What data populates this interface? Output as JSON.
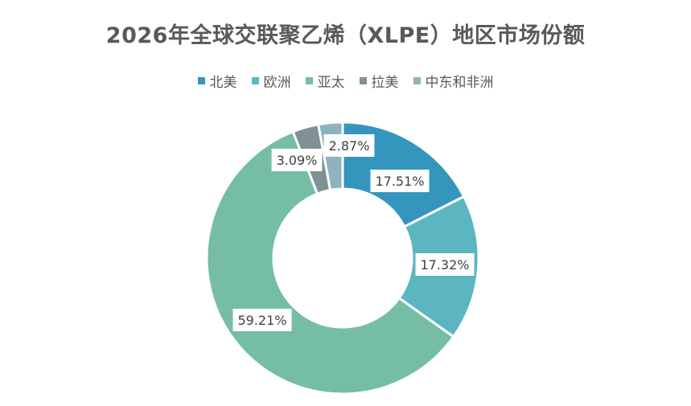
{
  "chart_data": {
    "type": "pie",
    "title": "2026年全球交联聚乙烯（XLPE）地区市场份额",
    "donut": true,
    "legend_position": "top",
    "slices": [
      {
        "name": "北美",
        "value": 17.51,
        "label": "17.51%",
        "color": "#3496BD"
      },
      {
        "name": "欧洲",
        "value": 17.32,
        "label": "17.32%",
        "color": "#5BB6C2"
      },
      {
        "name": "亚太",
        "value": 59.21,
        "label": "59.21%",
        "color": "#76BDA6"
      },
      {
        "name": "拉美",
        "value": 3.09,
        "label": "3.09%",
        "color": "#7F9193"
      },
      {
        "name": "中东和非洲",
        "value": 2.87,
        "label": "2.87%",
        "color": "#8DB3BF"
      }
    ]
  }
}
